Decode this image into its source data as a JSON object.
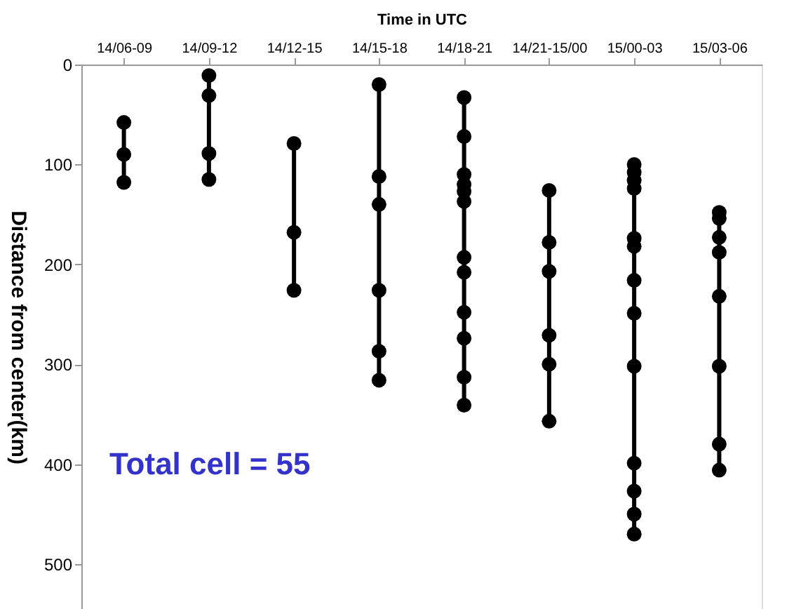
{
  "chart_data": {
    "type": "line",
    "xlabel": "Time in UTC",
    "ylabel": "Distance from center(km)",
    "categories": [
      "14/06-09",
      "14/09-12",
      "14/12-15",
      "14/15-18",
      "14/18-21",
      "14/21-15/00",
      "15/00-03",
      "15/03-06"
    ],
    "ylim": [
      545,
      0
    ],
    "yticks": [
      0,
      100,
      200,
      300,
      400,
      500
    ],
    "grid": false,
    "legend": false,
    "marker": "circle",
    "line_style": "solid",
    "annotations": [
      "Total cell = 55"
    ],
    "series": [
      {
        "color": "#000000",
        "x": [
          "14/06-09",
          "14/06-09",
          "14/06-09"
        ],
        "values": [
          58,
          90,
          118
        ]
      },
      {
        "color": "#000000",
        "x": [
          "14/09-12",
          "14/09-12",
          "14/09-12",
          "14/09-12"
        ],
        "values": [
          11,
          31,
          89,
          115
        ]
      },
      {
        "color": "#000000",
        "x": [
          "14/12-15",
          "14/12-15",
          "14/12-15"
        ],
        "values": [
          79,
          168,
          226
        ]
      },
      {
        "color": "#000000",
        "x": [
          "14/15-18",
          "14/15-18",
          "14/15-18",
          "14/15-18",
          "14/15-18",
          "14/15-18"
        ],
        "values": [
          20,
          112,
          140,
          226,
          287,
          316
        ]
      },
      {
        "color": "#000000",
        "x": [
          "14/18-21",
          "14/18-21",
          "14/18-21",
          "14/18-21",
          "14/18-21",
          "14/18-21",
          "14/18-21",
          "14/18-21",
          "14/18-21",
          "14/18-21",
          "14/18-21",
          "14/18-21"
        ],
        "values": [
          33,
          72,
          110,
          120,
          127,
          137,
          193,
          208,
          248,
          274,
          313,
          341
        ]
      },
      {
        "color": "#000000",
        "x": [
          "14/21-15/00",
          "14/21-15/00",
          "14/21-15/00",
          "14/21-15/00",
          "14/21-15/00",
          "14/21-15/00"
        ],
        "values": [
          126,
          178,
          207,
          271,
          300,
          357
        ]
      },
      {
        "color": "#000000",
        "x": [
          "15/00-03",
          "15/00-03",
          "15/00-03",
          "15/00-03",
          "15/00-03",
          "15/00-03",
          "15/00-03",
          "15/00-03",
          "15/00-03",
          "15/00-03",
          "15/00-03",
          "15/00-03",
          "15/00-03"
        ],
        "values": [
          100,
          108,
          116,
          124,
          174,
          182,
          216,
          249,
          302,
          399,
          427,
          450,
          470
        ]
      },
      {
        "color": "#000000",
        "x": [
          "15/03-06",
          "15/03-06",
          "15/03-06",
          "15/03-06",
          "15/03-06",
          "15/03-06",
          "15/03-06",
          "15/03-06"
        ],
        "values": [
          148,
          154,
          173,
          188,
          232,
          302,
          380,
          406
        ]
      }
    ]
  }
}
